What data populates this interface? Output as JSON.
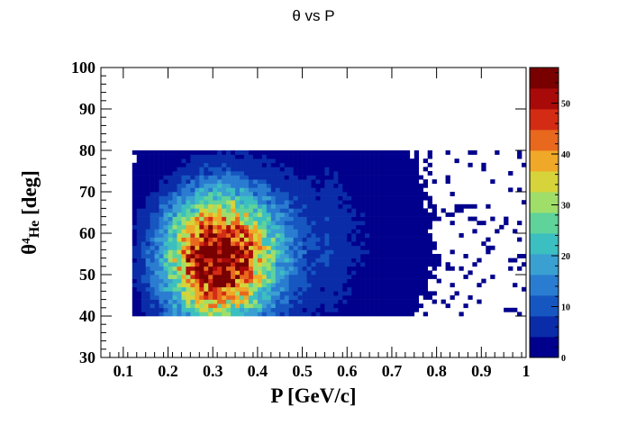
{
  "chart_data": {
    "type": "heatmap",
    "title": "θ vs P",
    "xlabel": "P [GeV/c]",
    "ylabel_main": "θ",
    "ylabel_sup": "4",
    "ylabel_sub": "He",
    "ylabel_unit": " [deg]",
    "xlim": [
      0.05,
      1.0
    ],
    "ylim": [
      30,
      100
    ],
    "x_ticks": [
      0.1,
      0.2,
      0.3,
      0.4,
      0.5,
      0.6,
      0.7,
      0.8,
      0.9,
      1
    ],
    "x_tick_labels": [
      "0.1",
      "0.2",
      "0.3",
      "0.4",
      "0.5",
      "0.6",
      "0.7",
      "0.8",
      "0.9",
      "1"
    ],
    "y_ticks": [
      30,
      40,
      50,
      60,
      70,
      80,
      90,
      100
    ],
    "y_tick_labels": [
      "30",
      "40",
      "50",
      "60",
      "70",
      "80",
      "90",
      "100"
    ],
    "bins": {
      "nx": 95,
      "ny": 70
    },
    "distribution": {
      "peak_x": 0.31,
      "peak_y": 54,
      "peak_count": 56,
      "theta_band": [
        40,
        80
      ],
      "p_band": [
        0.12,
        1.0
      ]
    },
    "colorbar": {
      "range": [
        0,
        57
      ],
      "ticks": [
        0,
        10,
        20,
        30,
        40,
        50
      ],
      "tick_labels": [
        "0",
        "10",
        "20",
        "30",
        "40",
        "50"
      ]
    },
    "colormap": [
      "#00008c",
      "#0a2ca8",
      "#1656c0",
      "#2a7cd0",
      "#3aa0d2",
      "#3cbfc0",
      "#5fd39a",
      "#a0de6a",
      "#d6d43a",
      "#f0a828",
      "#e8681e",
      "#d42c14",
      "#a80a0a",
      "#780000"
    ]
  }
}
